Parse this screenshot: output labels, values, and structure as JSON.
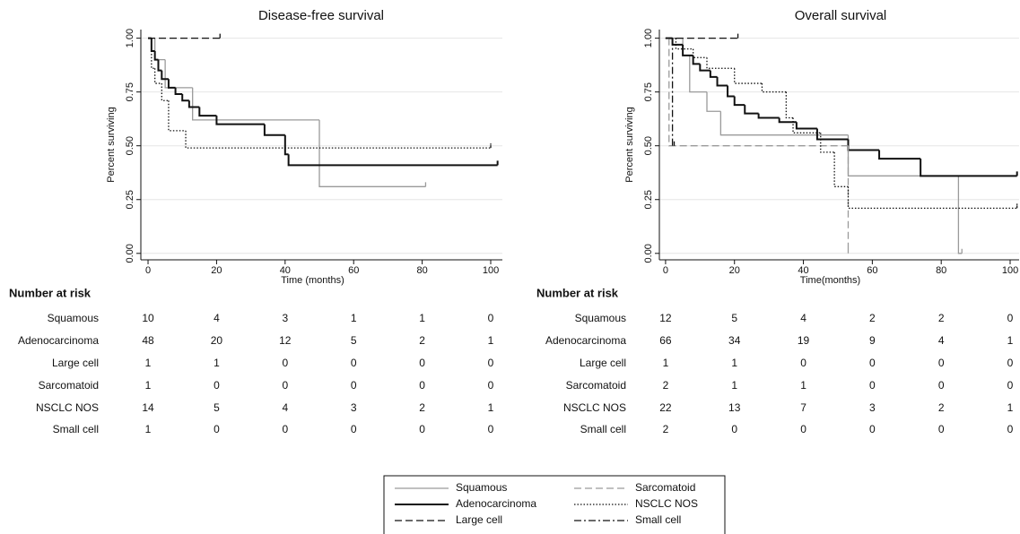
{
  "chart_data": [
    {
      "type": "km",
      "title": "Disease-free survival",
      "xlabel": "Time (months)",
      "ylabel": "Percent surviving",
      "xlim": [
        -2.1,
        103.4
      ],
      "ylim": [
        -0.03,
        1.04
      ],
      "xticks": [
        0,
        20,
        40,
        60,
        80,
        100
      ],
      "yticks": [
        {
          "value": 0,
          "label": "0.00"
        },
        {
          "value": 0.25,
          "label": "0.25"
        },
        {
          "value": 0.5,
          "label": "0.50"
        },
        {
          "value": 0.75,
          "label": "0.75"
        },
        {
          "value": 1,
          "label": "1.00"
        }
      ],
      "grid": true,
      "series": [
        {
          "name": "Squamous",
          "color": "#9a9a9a",
          "line_style": "solid",
          "x": [
            0,
            2,
            5,
            13,
            50,
            81
          ],
          "values": [
            1,
            0.9,
            0.77,
            0.62,
            0.31,
            0.31
          ]
        },
        {
          "name": "Adenocarcinoma",
          "color": "#111111",
          "line_style": "solid",
          "x": [
            0,
            1,
            2,
            3,
            4,
            6,
            8,
            10,
            12,
            15,
            20,
            34,
            40,
            41,
            102
          ],
          "values": [
            1,
            0.94,
            0.9,
            0.85,
            0.81,
            0.77,
            0.74,
            0.71,
            0.68,
            0.64,
            0.6,
            0.55,
            0.46,
            0.41,
            0.41
          ]
        },
        {
          "name": "Large cell",
          "color": "#111111",
          "line_style": "dash",
          "x": [
            0,
            21
          ],
          "values": [
            1,
            1
          ]
        },
        {
          "name": "NSCLC NOS",
          "color": "#111111",
          "line_style": "dot",
          "x": [
            0,
            1,
            2,
            4,
            6,
            11,
            100
          ],
          "values": [
            1,
            0.86,
            0.79,
            0.71,
            0.57,
            0.49,
            0.49
          ]
        }
      ],
      "risk_table": {
        "title": "Number at risk",
        "rows": [
          {
            "name": "Squamous",
            "counts": [
              10,
              4,
              3,
              1,
              1,
              0
            ]
          },
          {
            "name": "Adenocarcinoma",
            "counts": [
              48,
              20,
              12,
              5,
              2,
              1
            ]
          },
          {
            "name": "Large cell",
            "counts": [
              1,
              1,
              0,
              0,
              0,
              0
            ]
          },
          {
            "name": "Sarcomatoid",
            "counts": [
              1,
              0,
              0,
              0,
              0,
              0
            ]
          },
          {
            "name": "NSCLC NOS",
            "counts": [
              14,
              5,
              4,
              3,
              2,
              1
            ]
          },
          {
            "name": "Small cell",
            "counts": [
              1,
              0,
              0,
              0,
              0,
              0
            ]
          }
        ]
      }
    },
    {
      "type": "km",
      "title": "Overall survival",
      "xlabel": "Time(months)",
      "ylabel": "Percent surviving",
      "xlim": [
        -1.8,
        102.6
      ],
      "ylim": [
        -0.03,
        1.04
      ],
      "xticks": [
        0,
        20,
        40,
        60,
        80,
        100
      ],
      "yticks": [
        {
          "value": 0,
          "label": "0.00"
        },
        {
          "value": 0.25,
          "label": "0.25"
        },
        {
          "value": 0.5,
          "label": "0.50"
        },
        {
          "value": 0.75,
          "label": "0.75"
        },
        {
          "value": 1,
          "label": "1.00"
        }
      ],
      "grid": true,
      "legend": "bottom",
      "series": [
        {
          "name": "Squamous",
          "color": "#9a9a9a",
          "line_style": "solid",
          "x": [
            0,
            5,
            7,
            12,
            16,
            53,
            85,
            86
          ],
          "values": [
            1,
            0.92,
            0.75,
            0.66,
            0.55,
            0.36,
            0,
            0
          ]
        },
        {
          "name": "Adenocarcinoma",
          "color": "#111111",
          "line_style": "solid",
          "x": [
            0,
            2,
            5,
            8,
            10,
            13,
            15,
            18,
            20,
            23,
            27,
            33,
            38,
            44,
            53,
            62,
            74,
            102
          ],
          "values": [
            1,
            0.97,
            0.92,
            0.88,
            0.85,
            0.82,
            0.78,
            0.73,
            0.69,
            0.65,
            0.63,
            0.61,
            0.58,
            0.53,
            0.48,
            0.44,
            0.36,
            0.36
          ]
        },
        {
          "name": "Large cell",
          "color": "#111111",
          "line_style": "dash",
          "x": [
            0,
            21
          ],
          "values": [
            1,
            1
          ]
        },
        {
          "name": "Sarcomatoid",
          "color": "#9a9a9a",
          "line_style": "dash",
          "x": [
            0,
            1,
            53
          ],
          "values": [
            1,
            0.5,
            0
          ]
        },
        {
          "name": "NSCLC NOS",
          "color": "#111111",
          "line_style": "dot",
          "x": [
            0,
            3,
            8,
            12,
            20,
            28,
            35,
            37,
            45,
            49,
            53,
            102
          ],
          "values": [
            1,
            0.95,
            0.91,
            0.86,
            0.79,
            0.75,
            0.63,
            0.56,
            0.47,
            0.31,
            0.21,
            0.21
          ]
        },
        {
          "name": "Small cell",
          "color": "#111111",
          "line_style": "dashdot",
          "x": [
            0,
            2,
            2.5
          ],
          "values": [
            1,
            0.5,
            0.5
          ]
        }
      ],
      "risk_table": {
        "title": "Number at risk",
        "rows": [
          {
            "name": "Squamous",
            "counts": [
              12,
              5,
              4,
              2,
              2,
              0
            ]
          },
          {
            "name": "Adenocarcinoma",
            "counts": [
              66,
              34,
              19,
              9,
              4,
              1
            ]
          },
          {
            "name": "Large cell",
            "counts": [
              1,
              1,
              0,
              0,
              0,
              0
            ]
          },
          {
            "name": "Sarcomatoid",
            "counts": [
              2,
              1,
              1,
              0,
              0,
              0
            ]
          },
          {
            "name": "NSCLC NOS",
            "counts": [
              22,
              13,
              7,
              3,
              2,
              1
            ]
          },
          {
            "name": "Small cell",
            "counts": [
              2,
              0,
              0,
              0,
              0,
              0
            ]
          }
        ]
      }
    }
  ]
}
